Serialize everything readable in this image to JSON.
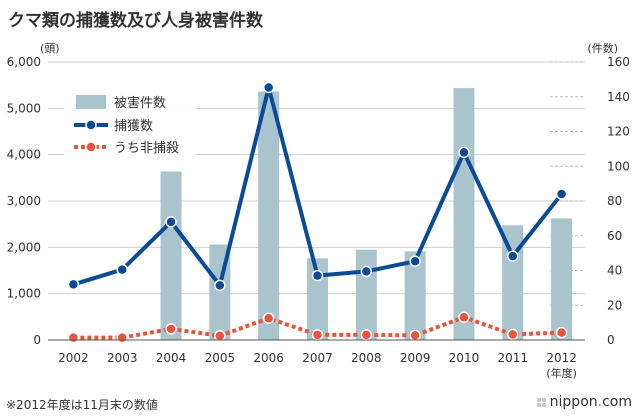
{
  "title": "クマ類の捕獲数及び人身被害件数",
  "footnote": "※2012年度は11月末の数値",
  "brand": {
    "icon": "grid-logo-icon",
    "name": "nippon",
    "dot": ".",
    "tld": "com"
  },
  "colors": {
    "bars": "#a9c4cc",
    "capture_line": "#0b4a97",
    "kill_line": "#e8553d",
    "axis": "#333333",
    "grid": "#d0d0d0"
  },
  "chart_data": {
    "type": "bar+line",
    "categories": [
      "2002",
      "2003",
      "2004",
      "2005",
      "2006",
      "2007",
      "2008",
      "2009",
      "2010",
      "2011",
      "2012"
    ],
    "x_unit_label": "(年度)",
    "left_axis": {
      "unit_label": "(頭)",
      "ylim": [
        0,
        6000
      ],
      "ticks": [
        "0",
        "1,000",
        "2,000",
        "3,000",
        "4,000",
        "5,000",
        "6,000"
      ]
    },
    "right_axis": {
      "unit_label": "(件数)",
      "ylim": [
        0,
        160
      ],
      "ticks": [
        "0",
        "20",
        "40",
        "60",
        "80",
        "100",
        "120",
        "140",
        "160"
      ]
    },
    "grid": true,
    "legend_position": "top-left",
    "series": [
      {
        "name": "被害件数",
        "type": "bar",
        "axis": "right",
        "values": [
          null,
          null,
          97,
          55,
          143,
          47,
          52,
          51,
          145,
          66,
          70
        ]
      },
      {
        "name": "捕獲数",
        "type": "line",
        "axis": "left",
        "values": [
          1200,
          1520,
          2550,
          1180,
          5450,
          1390,
          1480,
          1700,
          4050,
          1810,
          3150
        ]
      },
      {
        "name": "うち非捕殺",
        "type": "line-dotted",
        "axis": "left",
        "values": [
          50,
          50,
          240,
          90,
          470,
          110,
          110,
          100,
          490,
          120,
          160
        ]
      }
    ]
  }
}
